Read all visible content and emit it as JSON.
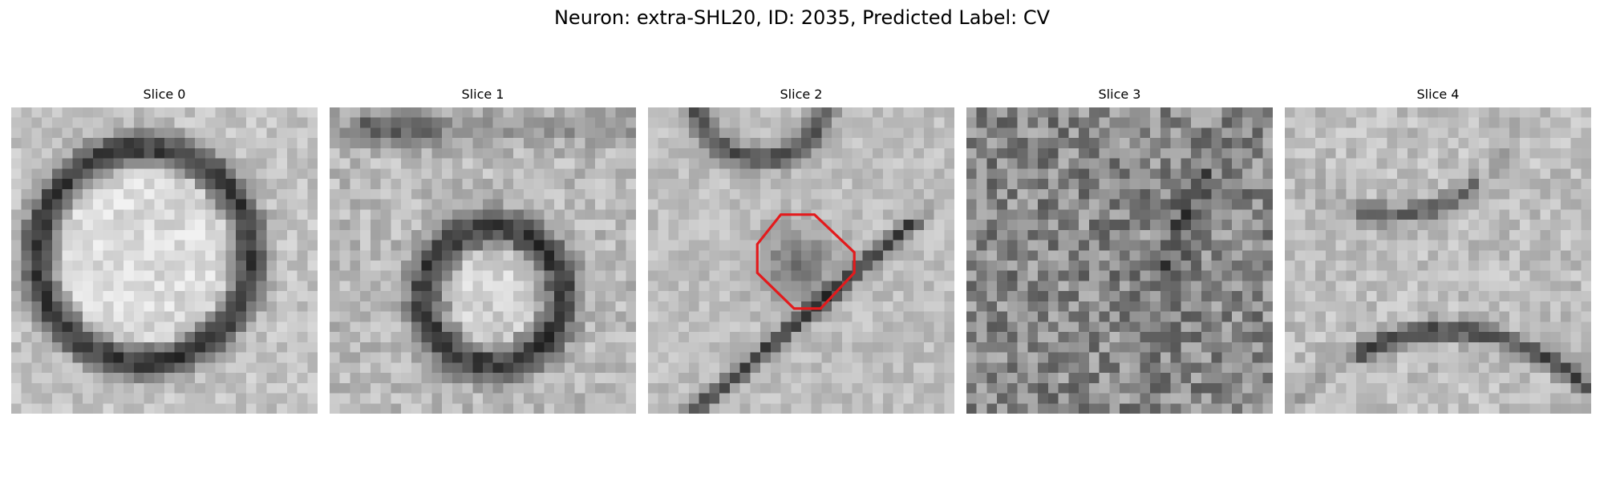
{
  "figure": {
    "title": "Neuron: extra-SHL20, ID: 2035, Predicted Label: CV"
  },
  "slices": [
    {
      "title": "Slice 0",
      "pattern": "ring"
    },
    {
      "title": "Slice 1",
      "pattern": "small-ring"
    },
    {
      "title": "Slice 2",
      "pattern": "vesicle-with-outline"
    },
    {
      "title": "Slice 3",
      "pattern": "noise"
    },
    {
      "title": "Slice 4",
      "pattern": "membrane"
    }
  ],
  "annotation": {
    "shape": "octagon",
    "slice": "Slice 2",
    "color": "#e31a1c"
  },
  "colormap": "gray"
}
